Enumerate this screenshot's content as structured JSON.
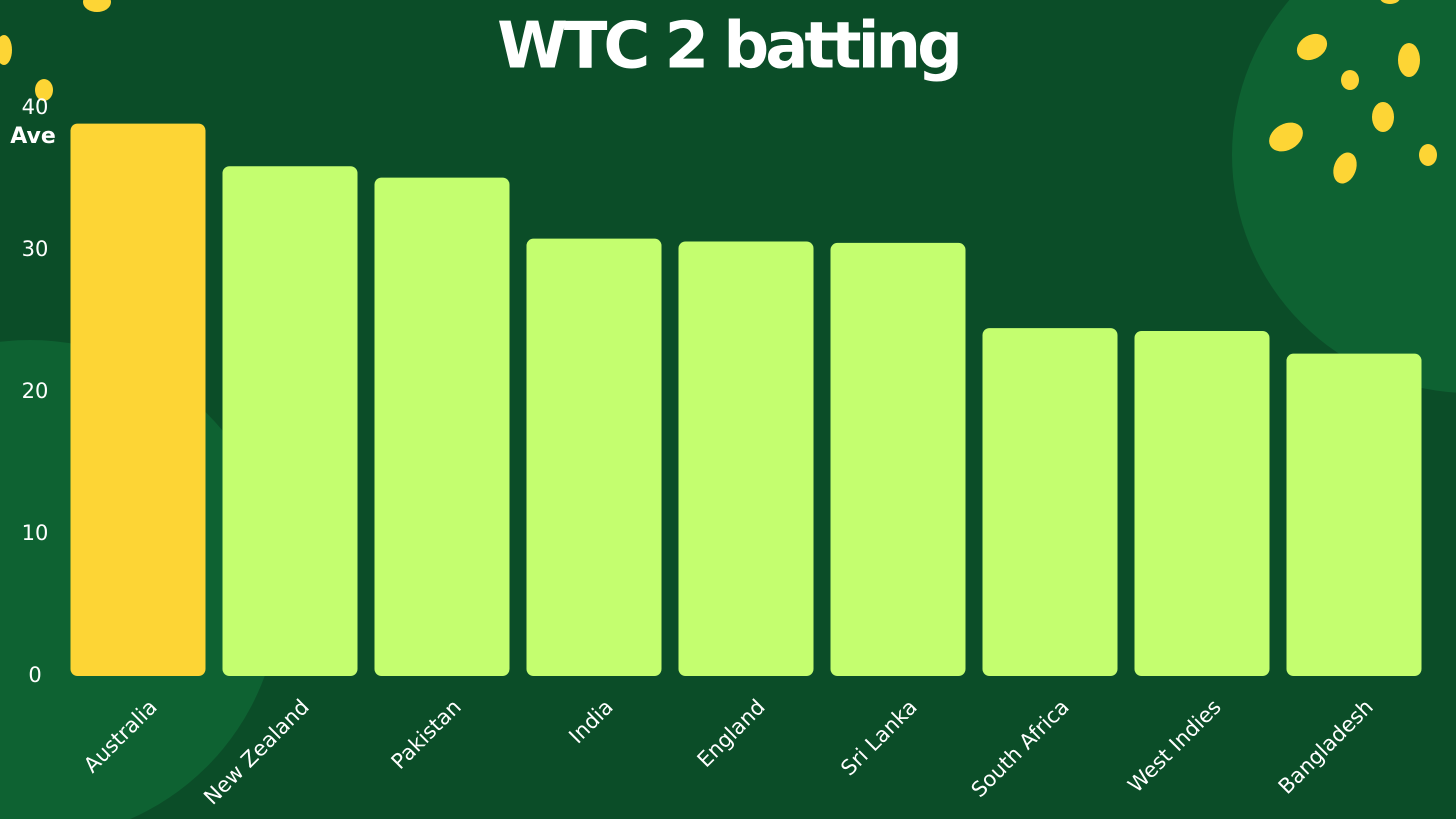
{
  "chart_data": {
    "type": "bar",
    "title": "WTC 2 batting",
    "y_label": "Ave",
    "categories": [
      "Australia",
      "New Zealand",
      "Pakistan",
      "India",
      "England",
      "Sri Lanka",
      "South Africa",
      "West Indies",
      "Bangladesh"
    ],
    "values": [
      38.9,
      35.9,
      35.1,
      30.8,
      30.6,
      30.5,
      24.5,
      24.3,
      22.7
    ],
    "colors": [
      "#fdd535",
      "#c4fe6f",
      "#c4fe6f",
      "#c4fe6f",
      "#c4fe6f",
      "#c4fe6f",
      "#c4fe6f",
      "#c4fe6f",
      "#c4fe6f"
    ],
    "ylim": [
      0,
      40
    ],
    "yticks": [
      0,
      10,
      20,
      30,
      40
    ],
    "grid": false
  }
}
